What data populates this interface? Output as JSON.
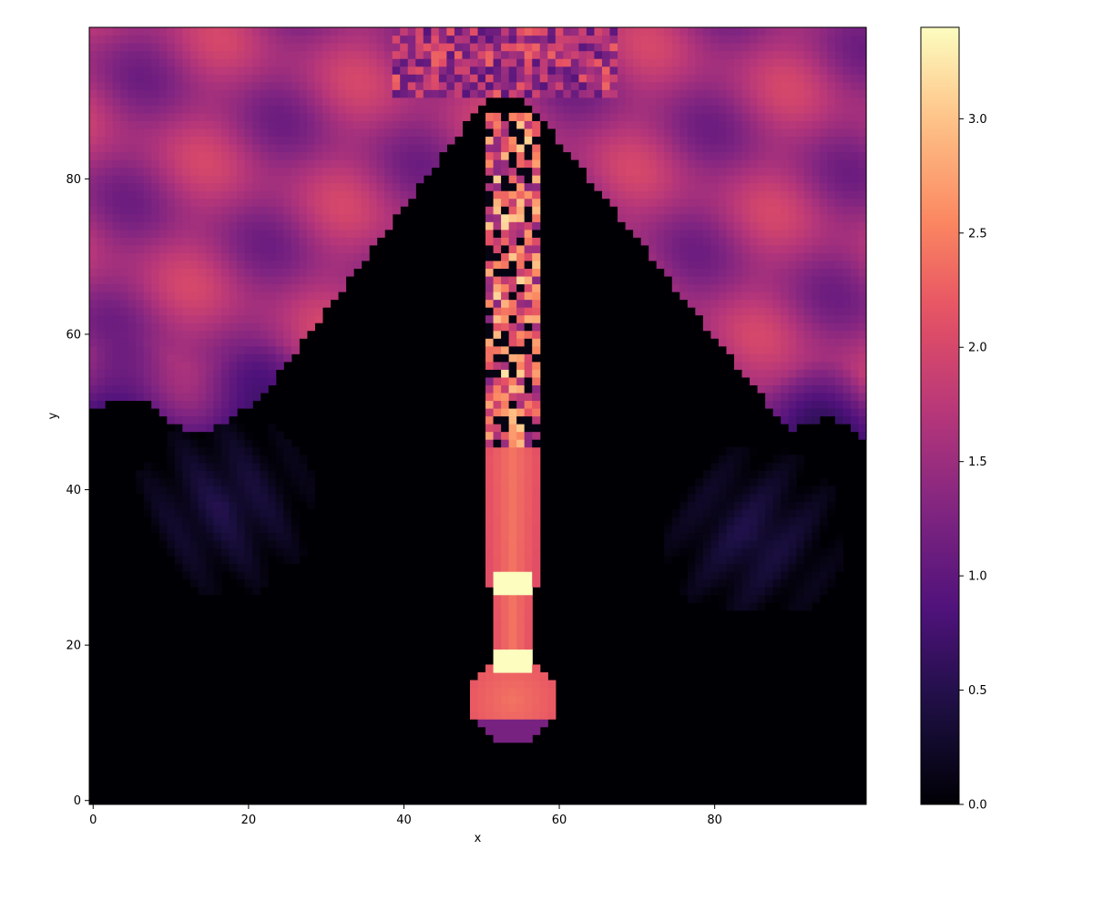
{
  "chart_data": {
    "type": "heatmap",
    "title": "",
    "xlabel": "x",
    "ylabel": "y",
    "grid_shape": [
      100,
      100
    ],
    "xlim": [
      -0.5,
      99.5
    ],
    "ylim": [
      -0.5,
      99.5
    ],
    "x_ticks": [
      0,
      20,
      40,
      60,
      80
    ],
    "y_ticks": [
      0,
      20,
      40,
      60,
      80
    ],
    "colormap": "magma",
    "colorbar": {
      "min": 0.0,
      "max": 3.4,
      "ticks": [
        0.0,
        0.5,
        1.0,
        1.5,
        2.0,
        2.5,
        3.0
      ],
      "tick_labels": [
        "0.0",
        "0.5",
        "1.0",
        "1.5",
        "2.0",
        "2.5",
        "3.0"
      ]
    },
    "features": {
      "background_value": 0.0,
      "upper_layer_value": 1.9,
      "upper_layer_bottom_left_y": 50,
      "upper_layer_bottom_right_y": 47,
      "dark_wedge_apex": [
        52,
        90
      ],
      "dark_wedge_base_x": [
        20,
        90
      ],
      "jet_center_x": 54,
      "jet_value": 2.4,
      "jet_y_range": [
        18,
        88
      ],
      "blob_center": [
        54,
        13
      ],
      "blob_radius": 5.5,
      "blob_value": 2.2,
      "peak_value": 3.4,
      "peak_locations_y": [
        18,
        28
      ]
    }
  }
}
